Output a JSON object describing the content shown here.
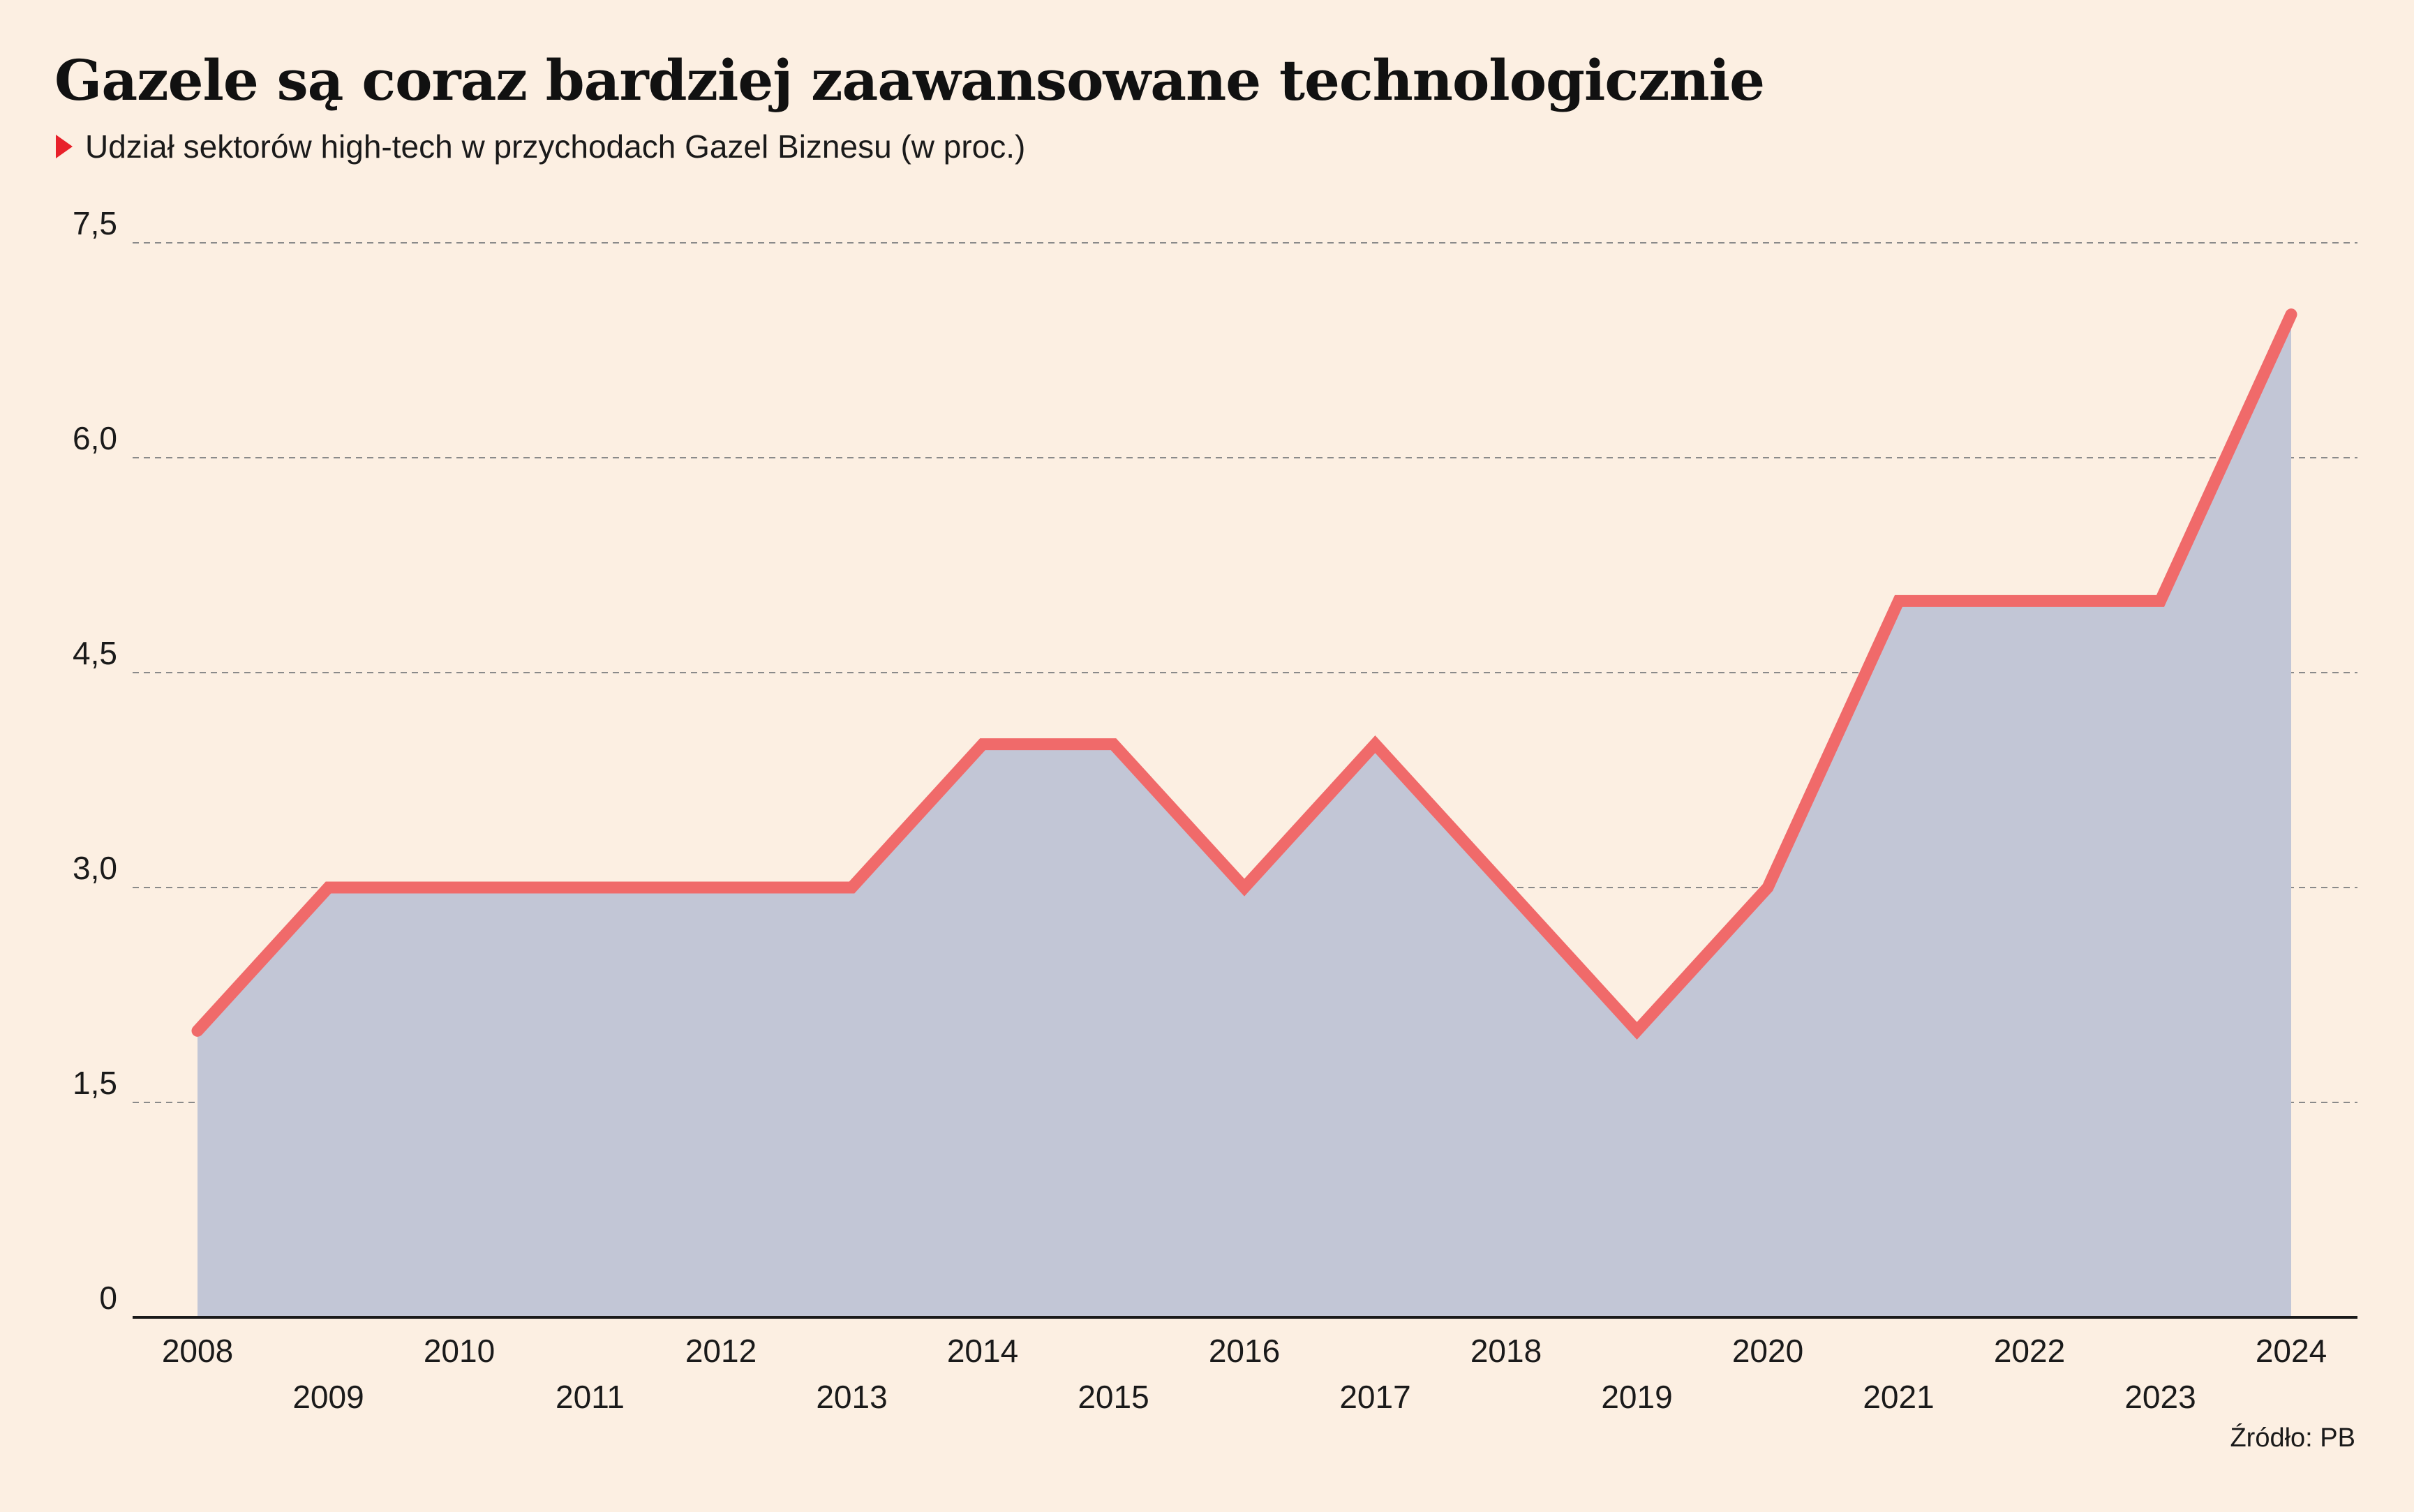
{
  "chart_data": {
    "type": "area",
    "title": "Gazele są coraz bardziej zaawansowane technologicznie",
    "subtitle": "Udział sektorów high-tech w przychodach Gazel Biznesu (w proc.)",
    "source": "Źródło: PB",
    "x": [
      "2008",
      "2009",
      "2010",
      "2011",
      "2012",
      "2013",
      "2014",
      "2015",
      "2016",
      "2017",
      "2018",
      "2019",
      "2020",
      "2021",
      "2022",
      "2023",
      "2024"
    ],
    "values": [
      2,
      3,
      3,
      3,
      3,
      3,
      4,
      4,
      3,
      4,
      3,
      2,
      3,
      5,
      5,
      5,
      7
    ],
    "yticks": [
      0,
      1.5,
      3.0,
      4.5,
      6.0,
      7.5
    ],
    "ytick_labels": [
      "0",
      "1,5",
      "3,0",
      "4,5",
      "6,0",
      "7,5"
    ],
    "ylim": [
      0,
      7.5
    ],
    "grid": true,
    "colors": {
      "line": "#f06a6a",
      "fill": "#c2c6d6",
      "grid": "#8a8a8a",
      "axis": "#1a1a1a",
      "marker": "#e8202a"
    }
  }
}
